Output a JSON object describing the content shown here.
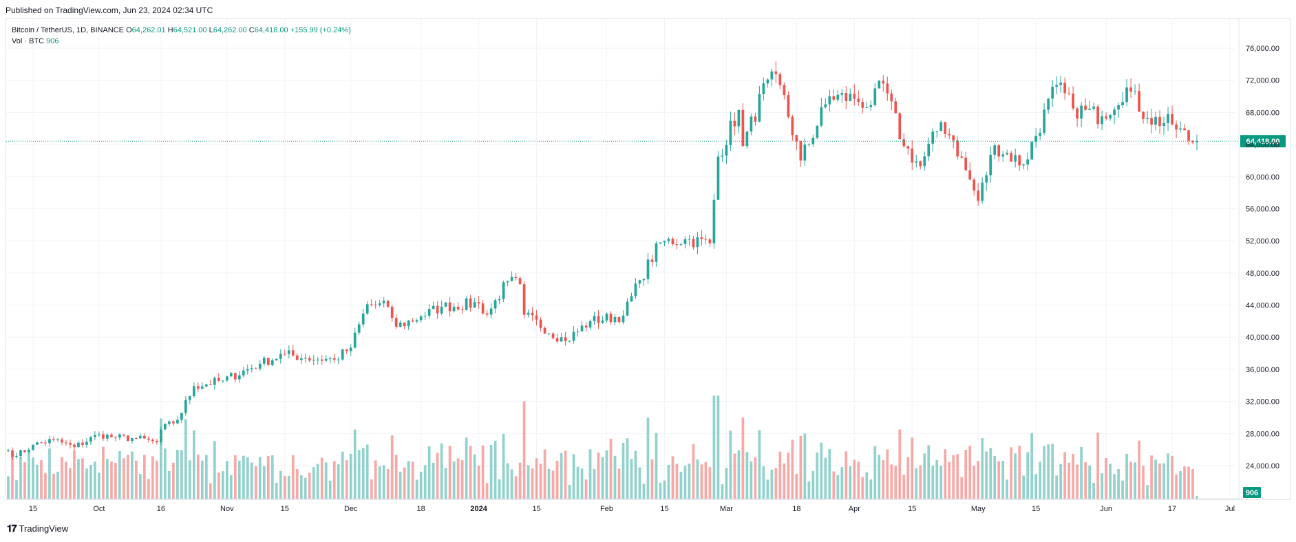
{
  "header": {
    "published": "Published on TradingView.com, Jun 23, 2024 02:34 UTC"
  },
  "legend": {
    "symbol": "Bitcoin / TetherUS, 1D, BINANCE",
    "open_label": "O",
    "open": "64,262.01",
    "high_label": "H",
    "high": "64,521.00",
    "low_label": "L",
    "low": "64,262.00",
    "close_label": "C",
    "close": "64,418.00",
    "change": "+155.99 (+0.24%)",
    "volume_label": "Vol · BTC",
    "volume": "906"
  },
  "footer": {
    "brand": "TradingView",
    "brand_icon": "tradingview-logo-icon"
  },
  "colors": {
    "up": "#26a69a",
    "down": "#ef5350",
    "up_text": "#089981",
    "grid": "#f0f3fa",
    "axis_text": "#131722"
  },
  "chart_data": {
    "type": "candlestick",
    "x_start": "2023-09-09",
    "x_end": "2024-06-23",
    "xlim": [
      "2023-09-09",
      "2024-07-01"
    ],
    "ylim": [
      72800,
      77800
    ],
    "y_ticks": [
      24000,
      28000,
      32000,
      36000,
      40000,
      44000,
      48000,
      52000,
      56000,
      60000,
      64000,
      68000,
      72000,
      76000
    ],
    "y_tick_labels": [
      "24,000.00",
      "28,000.00",
      "32,000.00",
      "36,000.00",
      "40,000.00",
      "44,000.00",
      "48,000.00",
      "52,000.00",
      "56,000.00",
      "60,000.00",
      "64,000.00",
      "68,000.00",
      "72,000.00",
      "76,000.00"
    ],
    "x_ticks": [
      {
        "label": "15",
        "date": "2023-09-15",
        "bold": false
      },
      {
        "label": "Oct",
        "date": "2023-10-01",
        "bold": false
      },
      {
        "label": "16",
        "date": "2023-10-16",
        "bold": false
      },
      {
        "label": "Nov",
        "date": "2023-11-01",
        "bold": false
      },
      {
        "label": "15",
        "date": "2023-11-15",
        "bold": false
      },
      {
        "label": "Dec",
        "date": "2023-12-01",
        "bold": false
      },
      {
        "label": "18",
        "date": "2023-12-18",
        "bold": false
      },
      {
        "label": "2024",
        "date": "2024-01-01",
        "bold": true
      },
      {
        "label": "15",
        "date": "2024-01-15",
        "bold": false
      },
      {
        "label": "Feb",
        "date": "2024-02-01",
        "bold": false
      },
      {
        "label": "15",
        "date": "2024-02-15",
        "bold": false
      },
      {
        "label": "Mar",
        "date": "2024-03-01",
        "bold": false
      },
      {
        "label": "18",
        "date": "2024-03-18",
        "bold": false
      },
      {
        "label": "Apr",
        "date": "2024-04-01",
        "bold": false
      },
      {
        "label": "15",
        "date": "2024-04-15",
        "bold": false
      },
      {
        "label": "May",
        "date": "2024-05-01",
        "bold": false
      },
      {
        "label": "15",
        "date": "2024-05-15",
        "bold": false
      },
      {
        "label": "Jun",
        "date": "2024-06-01",
        "bold": false
      },
      {
        "label": "17",
        "date": "2024-06-17",
        "bold": false
      },
      {
        "label": "Jul",
        "date": "2024-07-01",
        "bold": false
      }
    ],
    "last_price": 64418,
    "last_price_label": "64,418.00",
    "last_volume": 906,
    "last_volume_label": "906",
    "grid": true,
    "close_anchors": [
      [
        "2023-09-09",
        25900
      ],
      [
        "2023-09-11",
        25200
      ],
      [
        "2023-09-15",
        26600
      ],
      [
        "2023-09-20",
        27200
      ],
      [
        "2023-09-25",
        26300
      ],
      [
        "2023-10-01",
        27900
      ],
      [
        "2023-10-05",
        27500
      ],
      [
        "2023-10-10",
        27400
      ],
      [
        "2023-10-15",
        26900
      ],
      [
        "2023-10-16",
        28500
      ],
      [
        "2023-10-20",
        29700
      ],
      [
        "2023-10-24",
        33900
      ],
      [
        "2023-10-31",
        34600
      ],
      [
        "2023-11-09",
        36700
      ],
      [
        "2023-11-15",
        37900
      ],
      [
        "2023-11-20",
        37400
      ],
      [
        "2023-11-27",
        37200
      ],
      [
        "2023-12-01",
        38700
      ],
      [
        "2023-12-05",
        44100
      ],
      [
        "2023-12-10",
        43800
      ],
      [
        "2023-12-12",
        41300
      ],
      [
        "2023-12-18",
        42600
      ],
      [
        "2023-12-23",
        43800
      ],
      [
        "2024-01-01",
        44200
      ],
      [
        "2024-01-03",
        42800
      ],
      [
        "2024-01-08",
        47000
      ],
      [
        "2024-01-11",
        46600
      ],
      [
        "2024-01-12",
        42800
      ],
      [
        "2024-01-22",
        39500
      ],
      [
        "2024-01-28",
        42000
      ],
      [
        "2024-02-05",
        42700
      ],
      [
        "2024-02-09",
        47100
      ],
      [
        "2024-02-14",
        51800
      ],
      [
        "2024-02-20",
        52200
      ],
      [
        "2024-02-26",
        51700
      ],
      [
        "2024-02-28",
        62500
      ],
      [
        "2024-03-04",
        68300
      ],
      [
        "2024-03-05",
        63800
      ],
      [
        "2024-03-11",
        72100
      ],
      [
        "2024-03-14",
        71400
      ],
      [
        "2024-03-19",
        62000
      ],
      [
        "2024-03-26",
        70000
      ],
      [
        "2024-04-01",
        69700
      ],
      [
        "2024-04-05",
        68900
      ],
      [
        "2024-04-08",
        71600
      ],
      [
        "2024-04-13",
        63800
      ],
      [
        "2024-04-17",
        61300
      ],
      [
        "2024-04-22",
        66800
      ],
      [
        "2024-04-25",
        64500
      ],
      [
        "2024-05-01",
        57000
      ],
      [
        "2024-05-05",
        63900
      ],
      [
        "2024-05-12",
        61500
      ],
      [
        "2024-05-20",
        71400
      ],
      [
        "2024-05-24",
        68500
      ],
      [
        "2024-05-31",
        67500
      ],
      [
        "2024-06-06",
        71100
      ],
      [
        "2024-06-11",
        67300
      ],
      [
        "2024-06-17",
        66500
      ],
      [
        "2024-06-22",
        64262
      ],
      [
        "2024-06-23",
        64418
      ]
    ],
    "volume_scale": [
      0,
      35000
    ]
  }
}
